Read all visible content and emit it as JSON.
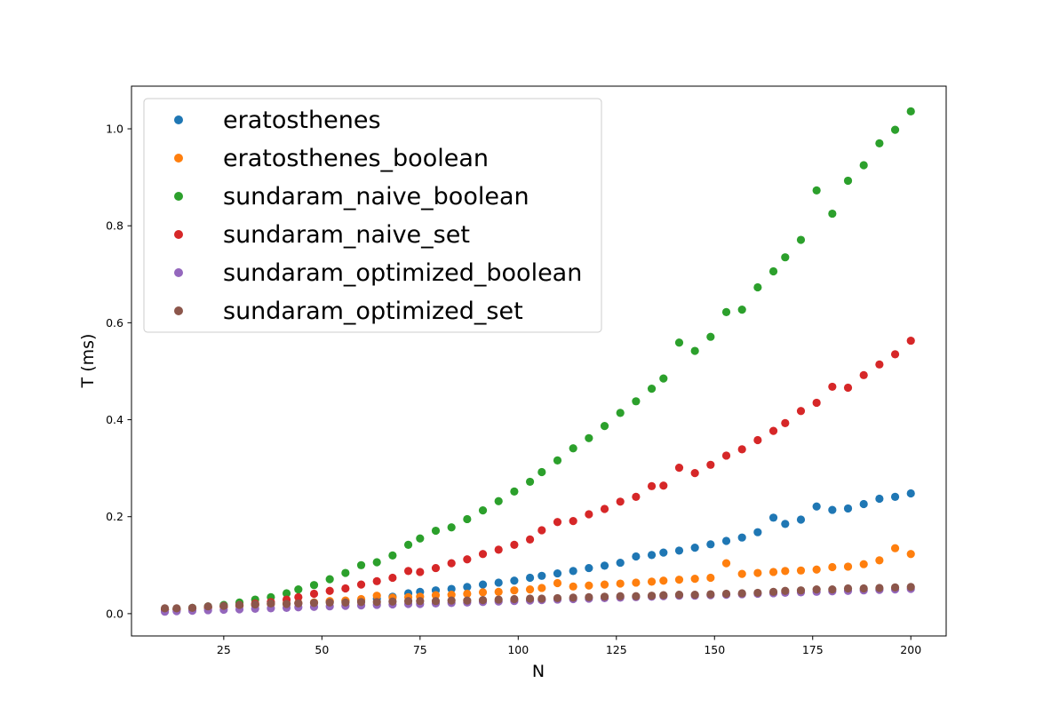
{
  "chart_data": {
    "type": "scatter",
    "title": "",
    "xlabel": "N",
    "ylabel": "T (ms)",
    "xlim": [
      1.5,
      209
    ],
    "ylim": [
      -0.046,
      1.088
    ],
    "xticks": [
      25,
      50,
      75,
      100,
      125,
      150,
      175,
      200
    ],
    "yticks": [
      0.0,
      0.2,
      0.4,
      0.6,
      0.8,
      1.0
    ],
    "grid": false,
    "legend_position": "top-left",
    "x": [
      10,
      13,
      17,
      21,
      25,
      29,
      33,
      37,
      41,
      44,
      48,
      52,
      56,
      60,
      64,
      68,
      72,
      75,
      79,
      83,
      87,
      91,
      95,
      99,
      103,
      106,
      110,
      114,
      118,
      122,
      126,
      130,
      134,
      137,
      141,
      145,
      149,
      153,
      157,
      161,
      165,
      168,
      172,
      176,
      180,
      184,
      188,
      192,
      196,
      200
    ],
    "series": [
      {
        "name": "eratosthenes",
        "color": "#1f77b4",
        "values": [
          0.008,
          0.009,
          0.01,
          0.012,
          0.014,
          0.016,
          0.018,
          0.02,
          0.021,
          0.022,
          0.023,
          0.025,
          0.026,
          0.028,
          0.031,
          0.035,
          0.042,
          0.045,
          0.048,
          0.051,
          0.055,
          0.06,
          0.064,
          0.068,
          0.074,
          0.078,
          0.083,
          0.088,
          0.094,
          0.099,
          0.105,
          0.118,
          0.121,
          0.126,
          0.13,
          0.136,
          0.143,
          0.15,
          0.157,
          0.168,
          0.198,
          0.185,
          0.194,
          0.221,
          0.214,
          0.217,
          0.226,
          0.237,
          0.241,
          0.248
        ]
      },
      {
        "name": "eratosthenes_boolean",
        "color": "#ff7f0e",
        "values": [
          0.008,
          0.009,
          0.01,
          0.012,
          0.014,
          0.016,
          0.018,
          0.02,
          0.021,
          0.022,
          0.023,
          0.026,
          0.027,
          0.03,
          0.037,
          0.033,
          0.034,
          0.035,
          0.038,
          0.039,
          0.041,
          0.044,
          0.045,
          0.048,
          0.05,
          0.053,
          0.063,
          0.056,
          0.058,
          0.06,
          0.062,
          0.064,
          0.066,
          0.068,
          0.07,
          0.072,
          0.074,
          0.104,
          0.082,
          0.084,
          0.086,
          0.088,
          0.089,
          0.091,
          0.096,
          0.097,
          0.102,
          0.11,
          0.135,
          0.123
        ]
      },
      {
        "name": "sundaram_naive_boolean",
        "color": "#2ca02c",
        "values": [
          0.009,
          0.01,
          0.012,
          0.015,
          0.018,
          0.023,
          0.029,
          0.034,
          0.042,
          0.05,
          0.059,
          0.071,
          0.084,
          0.1,
          0.106,
          0.12,
          0.142,
          0.155,
          0.171,
          0.178,
          0.195,
          0.213,
          0.232,
          0.252,
          0.272,
          0.292,
          0.316,
          0.341,
          0.362,
          0.387,
          0.414,
          0.438,
          0.464,
          0.485,
          0.559,
          0.542,
          0.571,
          0.622,
          0.627,
          0.673,
          0.706,
          0.735,
          0.771,
          0.873,
          0.825,
          0.893,
          0.925,
          0.97,
          0.998,
          1.036
        ]
      },
      {
        "name": "sundaram_naive_set",
        "color": "#d62728",
        "values": [
          0.008,
          0.009,
          0.011,
          0.013,
          0.015,
          0.018,
          0.021,
          0.024,
          0.029,
          0.034,
          0.041,
          0.047,
          0.052,
          0.06,
          0.067,
          0.074,
          0.088,
          0.086,
          0.094,
          0.104,
          0.112,
          0.123,
          0.132,
          0.142,
          0.153,
          0.172,
          0.189,
          0.191,
          0.205,
          0.216,
          0.231,
          0.241,
          0.263,
          0.264,
          0.301,
          0.29,
          0.307,
          0.326,
          0.339,
          0.358,
          0.377,
          0.393,
          0.418,
          0.435,
          0.468,
          0.466,
          0.492,
          0.514,
          0.535,
          0.563
        ]
      },
      {
        "name": "sundaram_optimized_boolean",
        "color": "#9467bd",
        "values": [
          0.004,
          0.005,
          0.006,
          0.007,
          0.008,
          0.009,
          0.01,
          0.011,
          0.012,
          0.013,
          0.014,
          0.015,
          0.016,
          0.017,
          0.018,
          0.019,
          0.02,
          0.02,
          0.021,
          0.022,
          0.023,
          0.024,
          0.025,
          0.026,
          0.027,
          0.028,
          0.029,
          0.03,
          0.031,
          0.032,
          0.033,
          0.034,
          0.035,
          0.036,
          0.037,
          0.037,
          0.038,
          0.039,
          0.04,
          0.041,
          0.042,
          0.043,
          0.044,
          0.045,
          0.046,
          0.047,
          0.048,
          0.049,
          0.05,
          0.051
        ]
      },
      {
        "name": "sundaram_optimized_set",
        "color": "#8c564b",
        "values": [
          0.011,
          0.011,
          0.012,
          0.015,
          0.016,
          0.018,
          0.019,
          0.021,
          0.02,
          0.021,
          0.022,
          0.023,
          0.023,
          0.024,
          0.024,
          0.025,
          0.026,
          0.026,
          0.026,
          0.027,
          0.027,
          0.028,
          0.029,
          0.03,
          0.031,
          0.031,
          0.032,
          0.033,
          0.034,
          0.035,
          0.036,
          0.036,
          0.037,
          0.038,
          0.039,
          0.039,
          0.04,
          0.041,
          0.042,
          0.043,
          0.045,
          0.047,
          0.048,
          0.05,
          0.05,
          0.052,
          0.052,
          0.053,
          0.054,
          0.055
        ]
      }
    ]
  }
}
